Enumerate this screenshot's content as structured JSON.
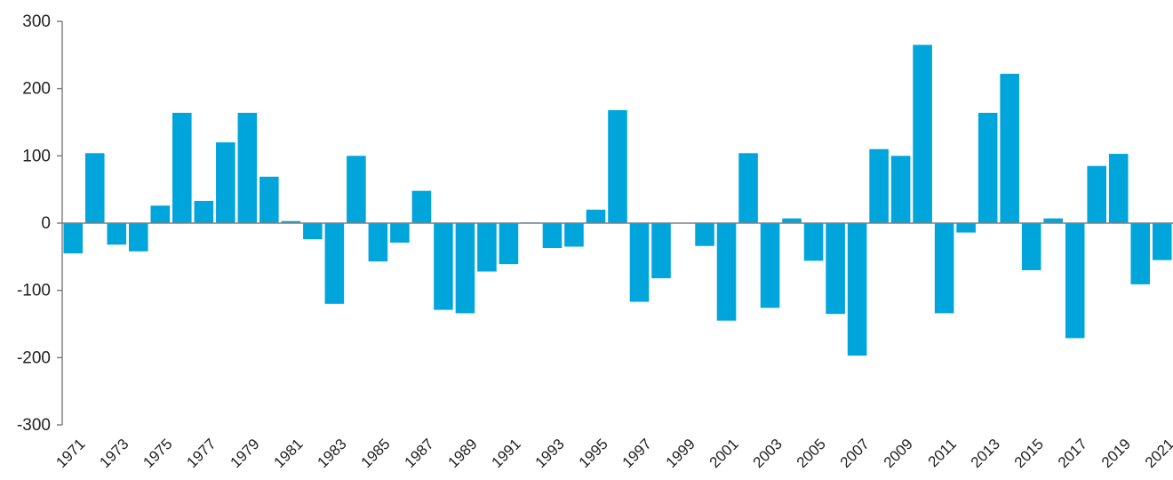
{
  "chart_data": {
    "type": "bar",
    "categories": [
      "1971",
      null,
      "1973",
      null,
      "1975",
      null,
      "1977",
      null,
      "1979",
      null,
      "1981",
      null,
      "1983",
      null,
      "1985",
      null,
      "1987",
      null,
      "1989",
      null,
      "1991",
      null,
      "1993",
      null,
      "1995",
      null,
      "1997",
      null,
      "1999",
      null,
      "2001",
      null,
      "2003",
      null,
      "2005",
      null,
      "2007",
      null,
      "2009",
      null,
      "2011",
      null,
      "2013",
      null,
      "2015",
      null,
      "2017",
      null,
      "2019",
      null,
      "2021"
    ],
    "values": [
      -45,
      104,
      -32,
      -42,
      26,
      164,
      33,
      120,
      164,
      69,
      3,
      -24,
      -120,
      100,
      -57,
      -29,
      48,
      -129,
      -134,
      -72,
      -61,
      1,
      -37,
      -35,
      20,
      168,
      -117,
      -82,
      0,
      -34,
      -145,
      104,
      -126,
      7,
      -56,
      -135,
      -197,
      110,
      100,
      265,
      -134,
      -14,
      164,
      222,
      -70,
      7,
      -171,
      85,
      103,
      -91,
      -55
    ],
    "color": "#00a5db",
    "ylim": [
      -300,
      300
    ],
    "yticks": [
      -300,
      -200,
      -100,
      0,
      100,
      200,
      300
    ],
    "grid": false
  }
}
